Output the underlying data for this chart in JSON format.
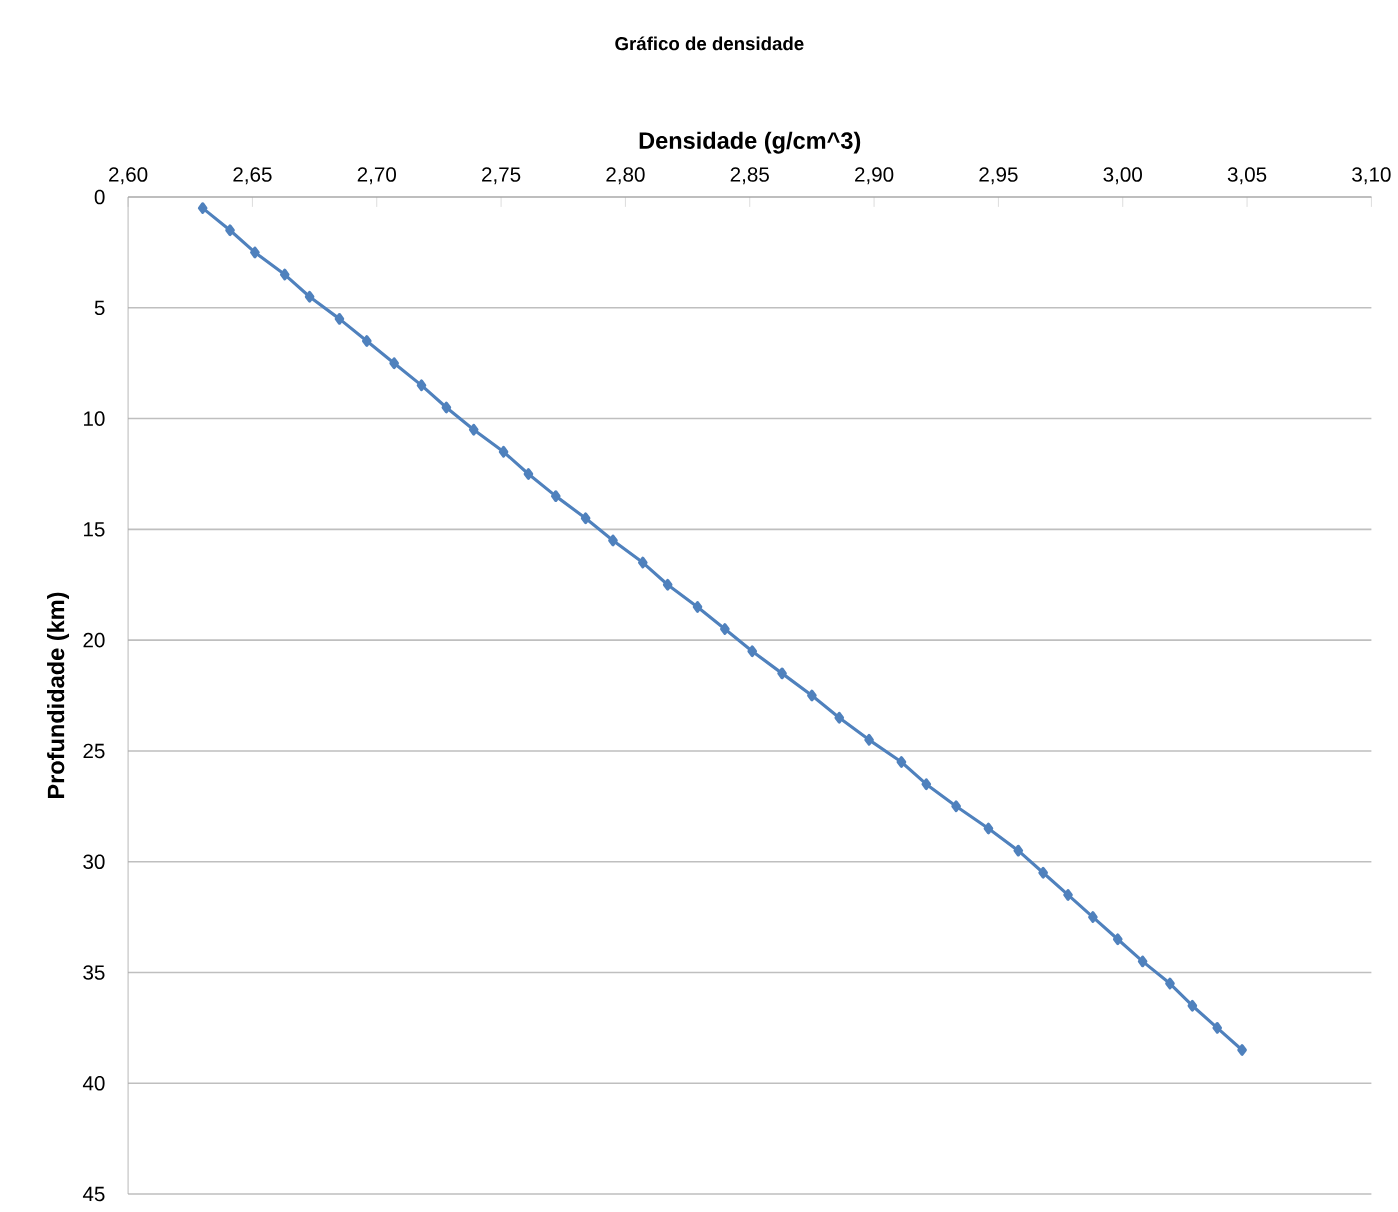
{
  "chart_data": {
    "type": "line",
    "title": "Gráfico de densidade",
    "xlabel": "Densidade (g/cm^3)",
    "ylabel": "Profundidade (km)",
    "x": [
      2.63,
      2.641,
      2.651,
      2.663,
      2.673,
      2.685,
      2.696,
      2.707,
      2.718,
      2.728,
      2.739,
      2.751,
      2.761,
      2.772,
      2.784,
      2.795,
      2.807,
      2.817,
      2.829,
      2.84,
      2.851,
      2.863,
      2.875,
      2.886,
      2.898,
      2.911,
      2.921,
      2.933,
      2.946,
      2.958,
      2.968,
      2.978,
      2.988,
      2.998,
      3.008,
      3.019,
      3.028,
      3.038,
      3.048
    ],
    "series": [
      {
        "color": "#4f81bd",
        "values": [
          0.5,
          1.5,
          2.5,
          3.5,
          4.5,
          5.5,
          6.5,
          7.5,
          8.5,
          9.5,
          10.5,
          11.5,
          12.5,
          13.5,
          14.5,
          15.5,
          16.5,
          17.5,
          18.5,
          19.5,
          20.5,
          21.5,
          22.5,
          23.5,
          24.5,
          25.5,
          26.5,
          27.5,
          28.5,
          29.5,
          30.5,
          31.5,
          32.5,
          33.5,
          34.5,
          35.5,
          36.5,
          37.5,
          38.5
        ]
      }
    ],
    "xlim": [
      2.6,
      3.1
    ],
    "xticks": [
      {
        "value": 2.6,
        "label": "2,60"
      },
      {
        "value": 2.65,
        "label": "2,65"
      },
      {
        "value": 2.7,
        "label": "2,70"
      },
      {
        "value": 2.75,
        "label": "2,75"
      },
      {
        "value": 2.8,
        "label": "2,80"
      },
      {
        "value": 2.85,
        "label": "2,85"
      },
      {
        "value": 2.9,
        "label": "2,90"
      },
      {
        "value": 2.95,
        "label": "2,95"
      },
      {
        "value": 3.0,
        "label": "3,00"
      },
      {
        "value": 3.05,
        "label": "3,05"
      },
      {
        "value": 3.1,
        "label": "3,10"
      }
    ],
    "ylim": [
      45,
      0
    ],
    "yticks": [
      0,
      5,
      10,
      15,
      20,
      25,
      30,
      35,
      40,
      45
    ],
    "grid": "y",
    "marker": "diamond",
    "line_style": "solid"
  }
}
